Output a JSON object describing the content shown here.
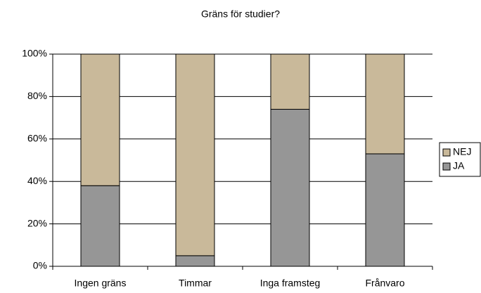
{
  "chart_data": {
    "type": "bar",
    "stacked": true,
    "title": "Gräns för studier?",
    "categories": [
      "Ingen gräns",
      "Timmar",
      "Inga framsteg",
      "Frånvaro"
    ],
    "series": [
      {
        "name": "JA",
        "color": "#969696",
        "values": [
          38,
          5,
          74,
          53
        ]
      },
      {
        "name": "NEJ",
        "color": "#c9b99a",
        "values": [
          62,
          95,
          26,
          47
        ]
      }
    ],
    "ylim": [
      0,
      100
    ],
    "yticks": [
      {
        "value": 0,
        "label": "0%"
      },
      {
        "value": 20,
        "label": "20%"
      },
      {
        "value": 40,
        "label": "40%"
      },
      {
        "value": 60,
        "label": "60%"
      },
      {
        "value": 80,
        "label": "80%"
      },
      {
        "value": 100,
        "label": "100%"
      }
    ],
    "grid": true,
    "legend": "right"
  }
}
